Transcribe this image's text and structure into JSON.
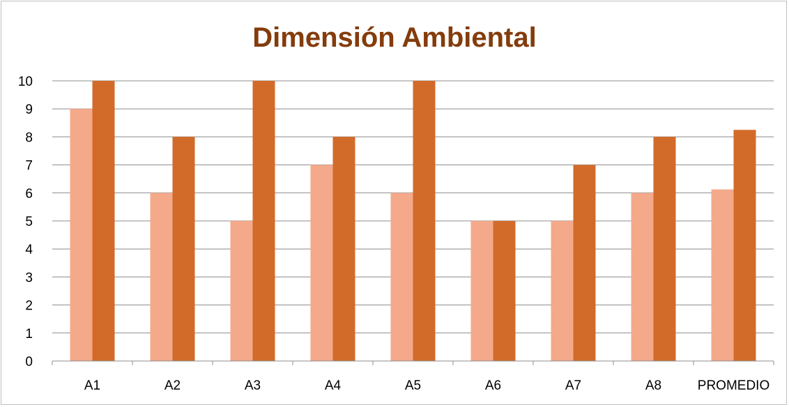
{
  "chart_data": {
    "type": "bar",
    "title": "Dimensión Ambiental",
    "xlabel": "",
    "ylabel": "",
    "categories": [
      "A1",
      "A2",
      "A3",
      "A4",
      "A5",
      "A6",
      "A7",
      "A8",
      "PROMEDIO"
    ],
    "series": [
      {
        "values": [
          9,
          6,
          5,
          7,
          6,
          5,
          5,
          6,
          6.125
        ]
      },
      {
        "values": [
          10,
          8,
          10,
          8,
          10,
          5,
          7,
          8,
          8.25
        ]
      }
    ],
    "ylim": [
      0,
      10
    ],
    "yticks": [
      "0",
      "1",
      "2",
      "3",
      "4",
      "5",
      "6",
      "7",
      "8",
      "9",
      "10"
    ],
    "grid": true,
    "legend": "none"
  },
  "colors": {
    "title": "#843c0c",
    "series": [
      "#f4a98a",
      "#d26b2a"
    ],
    "grid": "#8c8c8c",
    "axis": "#8c8c8c"
  }
}
